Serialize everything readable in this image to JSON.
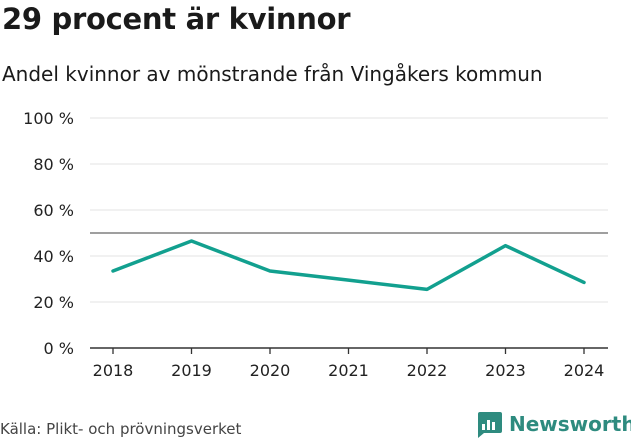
{
  "chart_data": {
    "type": "line",
    "title": "29 procent är kvinnor",
    "subtitle": "Andel kvinnor av mönstrande från Vingåkers kommun",
    "x": [
      "2018",
      "2019",
      "2020",
      "2021",
      "2022",
      "2023",
      "2024"
    ],
    "series": [
      {
        "values": [
          33.5,
          46.5,
          33.5,
          29.5,
          25.5,
          44.5,
          28.5
        ],
        "color": "#12a08f"
      }
    ],
    "reference_line": {
      "value": 50
    },
    "ylim": [
      0,
      100
    ],
    "yticks": [
      0,
      20,
      40,
      60,
      80,
      100
    ],
    "ytick_labels": [
      "0 %",
      "20 %",
      "40 %",
      "60 %",
      "80 %",
      "100 %"
    ],
    "xlabel": "",
    "ylabel": "",
    "grid": true,
    "legend": "none"
  },
  "source": "Källa: Plikt- och prövningsverket",
  "brand": {
    "name": "Newsworthy",
    "color": "#2e8b7f",
    "icon": "bar-chart-speech-bubble-icon"
  }
}
